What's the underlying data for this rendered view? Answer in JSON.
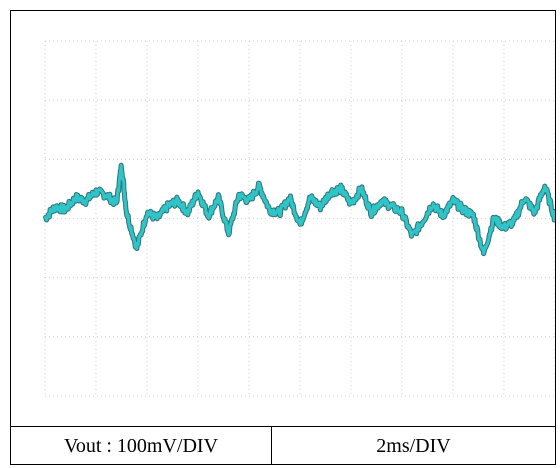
{
  "chart_data": {
    "type": "line",
    "title": "",
    "grid": true,
    "grid_divisions": {
      "x": 10,
      "y": 6
    },
    "xlim": [
      0,
      10
    ],
    "ylim": [
      -3,
      3
    ],
    "series": [
      {
        "color": "#2ec4c8",
        "x": [
          0.0,
          0.2,
          0.4,
          0.6,
          0.8,
          1.0,
          1.2,
          1.4,
          1.5,
          1.6,
          1.8,
          2.0,
          2.2,
          2.4,
          2.6,
          2.8,
          3.0,
          3.2,
          3.4,
          3.6,
          3.8,
          4.0,
          4.2,
          4.4,
          4.6,
          4.8,
          5.0,
          5.2,
          5.4,
          5.6,
          5.8,
          6.0,
          6.2,
          6.4,
          6.6,
          6.8,
          7.0,
          7.2,
          7.4,
          7.6,
          7.8,
          8.0,
          8.2,
          8.4,
          8.6,
          8.8,
          9.0,
          9.2,
          9.4,
          9.6,
          9.8,
          10.0
        ],
        "y": [
          0.0,
          0.2,
          0.15,
          0.35,
          0.3,
          0.45,
          0.4,
          0.25,
          0.9,
          0.1,
          -0.5,
          0.1,
          0.0,
          0.2,
          0.3,
          0.1,
          0.45,
          0.05,
          0.35,
          -0.25,
          0.4,
          0.3,
          0.55,
          0.15,
          0.1,
          0.35,
          -0.1,
          0.35,
          0.2,
          0.45,
          0.5,
          0.25,
          0.5,
          0.1,
          0.3,
          0.2,
          0.1,
          -0.3,
          -0.05,
          0.25,
          0.05,
          0.3,
          0.15,
          0.05,
          -0.6,
          0.0,
          -0.15,
          -0.05,
          0.35,
          0.1,
          0.55,
          0.0
        ]
      }
    ]
  },
  "labels": {
    "vertical_scale": "Vout : 100mV/DIV",
    "time_scale": "2ms/DIV"
  }
}
